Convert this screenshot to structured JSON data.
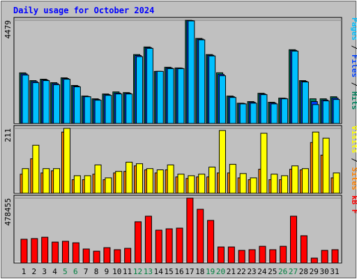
{
  "title": "Daily usage for October 2024",
  "legend_separator": " / ",
  "chart_data": [
    {
      "type": "bar",
      "ylim": [
        0,
        4479
      ],
      "yticks": [
        4479
      ],
      "series": [
        {
          "name": "Hits",
          "color": "#00805c",
          "values": [
            2196,
            1860,
            1920,
            1770,
            1980,
            1650,
            1190,
            1070,
            1280,
            1370,
            1340,
            2990,
            3320,
            2260,
            2440,
            2410,
            4479,
            3690,
            2990,
            2200,
            1190,
            880,
            950,
            1310,
            920,
            1100,
            3200,
            1860,
            1070,
            1070,
            1160
          ]
        },
        {
          "name": "Files",
          "color": "#0040ff",
          "values": [
            2150,
            1820,
            1890,
            1730,
            1950,
            1620,
            1170,
            1040,
            1250,
            1320,
            1310,
            2950,
            3290,
            2260,
            2410,
            2400,
            4465,
            3660,
            2960,
            2130,
            1160,
            870,
            920,
            1280,
            890,
            1090,
            3170,
            1830,
            950,
            1020,
            1100
          ]
        },
        {
          "name": "Pages",
          "color": "#00c0ff",
          "values": [
            2100,
            1770,
            1860,
            1680,
            1920,
            1590,
            1160,
            1010,
            1220,
            1280,
            1280,
            2900,
            3260,
            2260,
            2380,
            2380,
            4450,
            3630,
            2930,
            2070,
            1130,
            850,
            880,
            1250,
            850,
            1070,
            3140,
            1800,
            820,
            980,
            1040
          ]
        }
      ]
    },
    {
      "type": "bar",
      "ylim": [
        0,
        211
      ],
      "yticks": [
        211
      ],
      "series": [
        {
          "name": "Sites",
          "color": "#ff8000",
          "values": [
            62,
            112,
            66,
            73,
            199,
            44,
            44,
            62,
            44,
            66,
            71,
            89,
            76,
            66,
            76,
            53,
            48,
            53,
            53,
            66,
            66,
            50,
            44,
            78,
            44,
            44,
            78,
            76,
            165,
            124,
            50
          ]
        },
        {
          "name": "Visits",
          "color": "#ffff00",
          "values": [
            80,
            156,
            80,
            80,
            211,
            57,
            57,
            92,
            50,
            71,
            101,
            96,
            80,
            76,
            92,
            62,
            57,
            62,
            85,
            204,
            94,
            64,
            50,
            195,
            62,
            57,
            89,
            80,
            199,
            179,
            66
          ]
        }
      ]
    },
    {
      "type": "bar",
      "ylim": [
        0,
        478455
      ],
      "yticks": [
        478455
      ],
      "series": [
        {
          "name": "kB F",
          "color": "#ff0000",
          "values": [
            175000,
            180000,
            190000,
            154000,
            160000,
            149000,
            103000,
            87000,
            113000,
            98000,
            108000,
            304000,
            345000,
            242000,
            252000,
            257000,
            478455,
            396000,
            314000,
            118000,
            118000,
            93000,
            98000,
            123000,
            98000,
            123000,
            345000,
            201000,
            36000,
            93000,
            98000
          ]
        }
      ],
      "categories": [
        "1",
        "2",
        "3",
        "4",
        "5",
        "6",
        "7",
        "8",
        "9",
        "10",
        "11",
        "12",
        "13",
        "14",
        "15",
        "16",
        "17",
        "18",
        "19",
        "20",
        "21",
        "22",
        "23",
        "24",
        "25",
        "26",
        "27",
        "28",
        "29",
        "30",
        "31"
      ],
      "category_colors": [
        "#000",
        "#000",
        "#000",
        "#000",
        "#008040",
        "#008040",
        "#000",
        "#000",
        "#000",
        "#000",
        "#000",
        "#008040",
        "#008040",
        "#000",
        "#000",
        "#000",
        "#000",
        "#000",
        "#008040",
        "#008040",
        "#000",
        "#000",
        "#000",
        "#000",
        "#000",
        "#008040",
        "#008040",
        "#000",
        "#000",
        "#000",
        "#000"
      ]
    }
  ]
}
